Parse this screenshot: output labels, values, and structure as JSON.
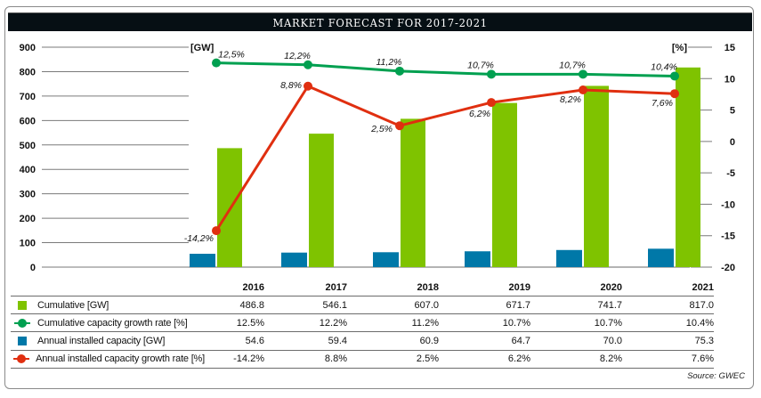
{
  "title": "MARKET FORECAST FOR 2017-2021",
  "source": "Source: GWEC",
  "colors": {
    "cumulative": "#7fc300",
    "annual": "#0078a8",
    "cumulative_growth": "#00a050",
    "annual_growth": "#e02f10",
    "title_bg": "#060f14"
  },
  "chart_data": {
    "type": "bar",
    "title": "MARKET FORECAST FOR 2017-2021",
    "categories": [
      "2016",
      "2017",
      "2018",
      "2019",
      "2020",
      "2021"
    ],
    "left_axis": {
      "label": "[GW]",
      "ylim": [
        0,
        900
      ],
      "ticks": [
        "900",
        "800",
        "700",
        "600",
        "500",
        "400",
        "300",
        "200",
        "100",
        "0"
      ],
      "tick_values": [
        900,
        800,
        700,
        600,
        500,
        400,
        300,
        200,
        100,
        0
      ]
    },
    "right_axis": {
      "label": "[%]",
      "ylim": [
        -20,
        15
      ],
      "ticks": [
        "15",
        "10",
        "5",
        "0",
        "-5",
        "-10",
        "-15",
        "-20"
      ],
      "tick_values": [
        15,
        10,
        5,
        0,
        -5,
        -10,
        -15,
        -20
      ]
    },
    "grid": true,
    "series": [
      {
        "name": "Annual installed capacity [GW]",
        "type": "bar",
        "axis": "left",
        "values": [
          54.6,
          59.4,
          60.9,
          64.7,
          70.0,
          75.3
        ]
      },
      {
        "name": "Cumulative [GW]",
        "type": "bar",
        "axis": "left",
        "values": [
          486.8,
          546.1,
          607.0,
          671.7,
          741.7,
          817.0
        ]
      },
      {
        "name": "Cumulative capacity growth rate [%]",
        "type": "line",
        "axis": "right",
        "values": [
          12.5,
          12.2,
          11.2,
          10.7,
          10.7,
          10.4
        ],
        "labels": [
          "12,5%",
          "12,2%",
          "11,2%",
          "10,7%",
          "10,7%",
          "10,4%"
        ]
      },
      {
        "name": "Annual installed capacity growth rate [%]",
        "type": "line",
        "axis": "right",
        "values": [
          -14.2,
          8.8,
          2.5,
          6.2,
          8.2,
          7.6
        ],
        "labels": [
          "-14,2%",
          "8,8%",
          "2,5%",
          "6,2%",
          "8,2%",
          "7,6%"
        ]
      }
    ],
    "legend": "table-below"
  },
  "table": {
    "years": [
      "2016",
      "2017",
      "2018",
      "2019",
      "2020",
      "2021"
    ],
    "rows": [
      {
        "label": "Cumulative [GW]",
        "marker": "square",
        "color_key": "cumulative",
        "values": [
          "486.8",
          "546.1",
          "607.0",
          "671.7",
          "741.7",
          "817.0"
        ]
      },
      {
        "label": "Cumulative capacity growth rate [%]",
        "marker": "line-dot",
        "color_key": "cumulative_growth",
        "values": [
          "12.5%",
          "12.2%",
          "11.2%",
          "10.7%",
          "10.7%",
          "10.4%"
        ]
      },
      {
        "label": "Annual installed capacity [GW]",
        "marker": "square",
        "color_key": "annual",
        "values": [
          "54.6",
          "59.4",
          "60.9",
          "64.7",
          "70.0",
          "75.3"
        ]
      },
      {
        "label": "Annual installed capacity growth rate [%]",
        "marker": "line-dot",
        "color_key": "annual_growth",
        "values": [
          "-14.2%",
          "8.8%",
          "2.5%",
          "6.2%",
          "8.2%",
          "7.6%"
        ]
      }
    ]
  }
}
